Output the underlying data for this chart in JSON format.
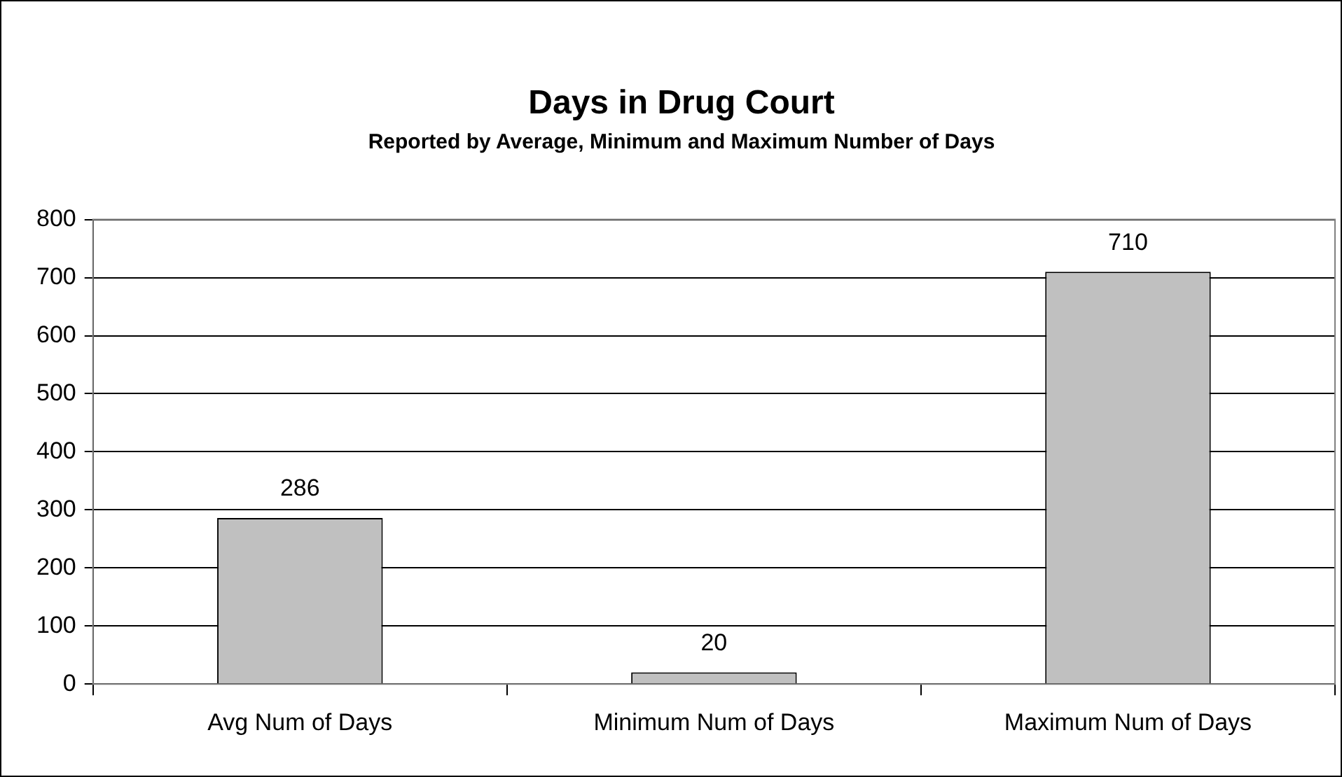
{
  "chart_data": {
    "type": "bar",
    "title": "Days in Drug Court",
    "subtitle": "Reported by Average, Minimum and Maximum Number of Days",
    "categories": [
      "Avg Num of Days",
      "Minimum Num of Days",
      "Maximum Num of Days"
    ],
    "values": [
      286,
      20,
      710
    ],
    "color": "#c0c0c0",
    "ylim": [
      0,
      800
    ],
    "yticks": [
      0,
      100,
      200,
      300,
      400,
      500,
      600,
      700,
      800
    ],
    "grid": "y",
    "data_labels": true
  }
}
